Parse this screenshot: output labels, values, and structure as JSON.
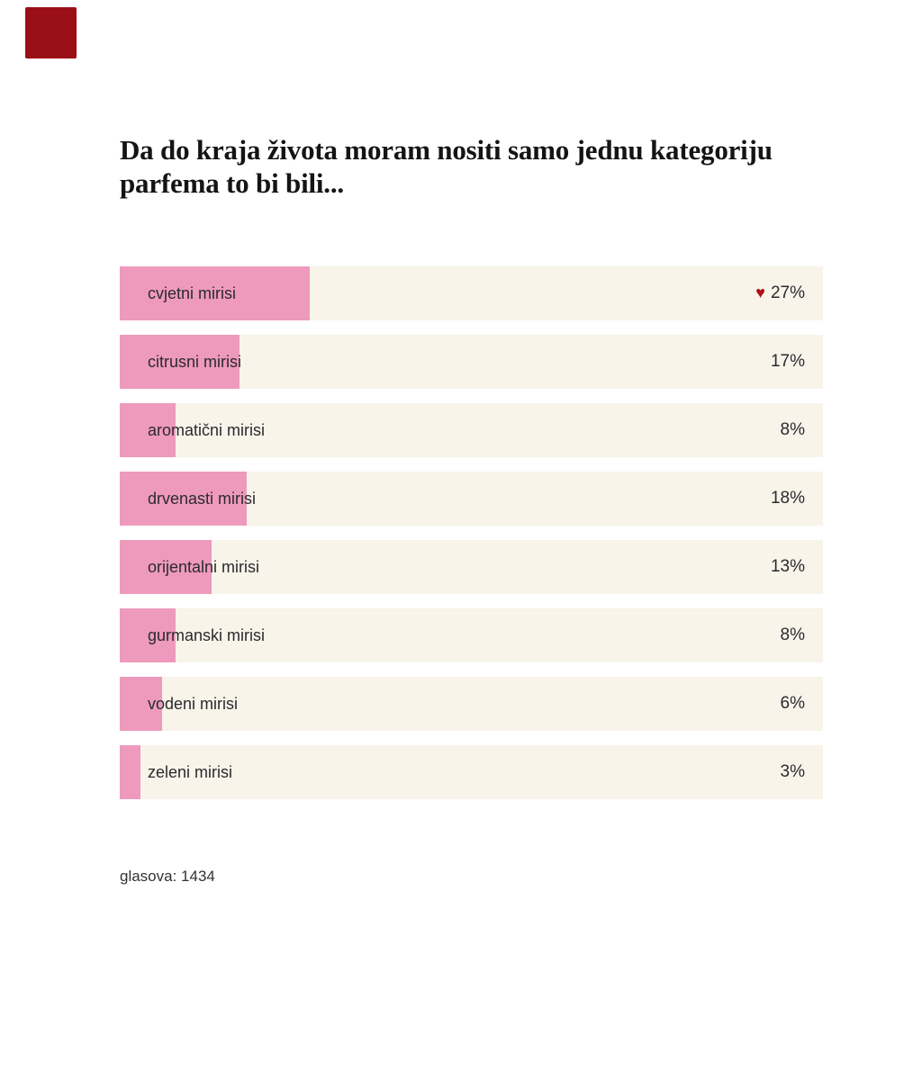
{
  "site": {
    "logo_color": "#9b1016"
  },
  "poll": {
    "title": "Da do kraja života moram nositi samo jednu kategoriju parfema to bi bili...",
    "votes_note": "glasova: 1434",
    "heart_glyph": "♥",
    "colors": {
      "track": "#f8f4e9",
      "fill": "#ee9abc",
      "heart": "#ad1016",
      "text": "#2a2a30"
    },
    "options": [
      {
        "label": "cvjetni mirisi",
        "percent": 27,
        "percent_label": "27%",
        "voted": true
      },
      {
        "label": "citrusni mirisi",
        "percent": 17,
        "percent_label": "17%",
        "voted": false
      },
      {
        "label": "aromatični mirisi",
        "percent": 8,
        "percent_label": "8%",
        "voted": false
      },
      {
        "label": "drvenasti mirisi",
        "percent": 18,
        "percent_label": "18%",
        "voted": false
      },
      {
        "label": "orijentalni mirisi",
        "percent": 13,
        "percent_label": "13%",
        "voted": false
      },
      {
        "label": "gurmanski mirisi",
        "percent": 8,
        "percent_label": "8%",
        "voted": false
      },
      {
        "label": "vodeni mirisi",
        "percent": 6,
        "percent_label": "6%",
        "voted": false
      },
      {
        "label": "zeleni mirisi",
        "percent": 3,
        "percent_label": "3%",
        "voted": false
      }
    ]
  },
  "chart_data": {
    "type": "bar",
    "orientation": "horizontal",
    "title": "Da do kraja života moram nositi samo jednu kategoriju parfema to bi bili...",
    "categories": [
      "cvjetni mirisi",
      "citrusni mirisi",
      "aromatični mirisi",
      "drvenasti mirisi",
      "orijentalni mirisi",
      "gurmanski mirisi",
      "vodeni mirisi",
      "zeleni mirisi"
    ],
    "values": [
      27,
      17,
      8,
      18,
      13,
      8,
      6,
      3
    ],
    "unit": "%",
    "xlim": [
      0,
      100
    ],
    "grid": false,
    "legend": false,
    "highlighted_category": "cvjetni mirisi",
    "annotation": "glasova: 1434"
  }
}
